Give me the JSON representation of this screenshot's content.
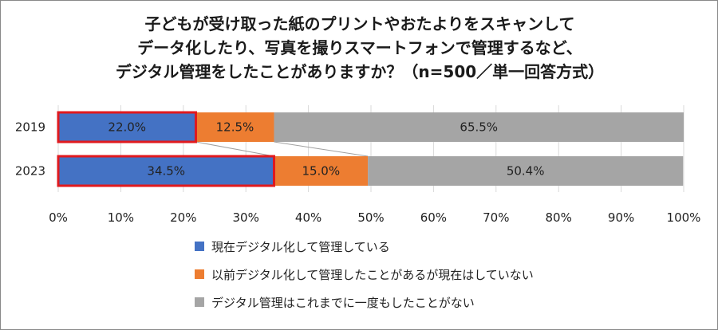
{
  "chart_data": {
    "type": "bar",
    "orientation": "horizontal",
    "stacked": "percent",
    "title": [
      "子どもが受け取った紙のプリントやおたよりをスキャンして",
      "データ化したり、写真を撮りスマートフォンで管理するなど、",
      "デジタル管理をしたことがありますか？（n=500／単一回答方式）"
    ],
    "categories": [
      "2019",
      "2023"
    ],
    "series": [
      {
        "name": "現在デジタル化して管理している",
        "values": [
          22.0,
          34.5
        ],
        "color": "#4472C4",
        "labels": [
          "22.0%",
          "34.5%"
        ]
      },
      {
        "name": "以前デジタル化して管理したことがあるが現在はしていない",
        "values": [
          12.5,
          15.0
        ],
        "color": "#ED7D31",
        "labels": [
          "12.5%",
          "15.0%"
        ]
      },
      {
        "name": "デジタル管理はこれまでに一度もしたことがない",
        "values": [
          65.5,
          50.4
        ],
        "color": "#A5A5A5",
        "labels": [
          "65.5%",
          "50.4%"
        ]
      }
    ],
    "xlim": [
      0,
      100
    ],
    "xticks": [
      "0%",
      "10%",
      "20%",
      "30%",
      "40%",
      "50%",
      "60%",
      "70%",
      "80%",
      "90%",
      "100%"
    ],
    "grid": "vertical",
    "legend_position": "bottom",
    "highlight_series": 0,
    "highlight_color": "#E0191E",
    "series_lines": true
  }
}
